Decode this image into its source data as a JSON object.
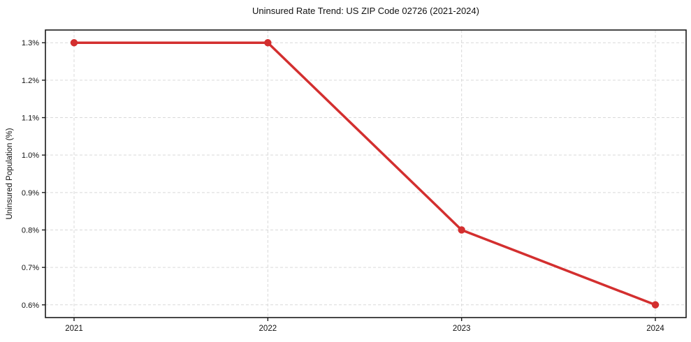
{
  "chart_data": {
    "type": "line",
    "title": "Uninsured Rate Trend: US ZIP Code 02726 (2021-2024)",
    "xlabel": "",
    "ylabel": "Uninsured Population (%)",
    "categories": [
      "2021",
      "2022",
      "2023",
      "2024"
    ],
    "values": [
      1.3,
      1.3,
      0.8,
      0.6
    ],
    "yticks": [
      0.6,
      0.7,
      0.8,
      0.9,
      1.0,
      1.1,
      1.2,
      1.3
    ],
    "ytick_labels": [
      "0.6%",
      "0.7%",
      "0.8%",
      "0.9%",
      "1.0%",
      "1.1%",
      "1.2%",
      "1.3%"
    ],
    "ylim": [
      0.566,
      1.334
    ],
    "grid": true,
    "grid_style": "dashed",
    "legend": false,
    "marker": "circle",
    "colors": {
      "line": "#d32f2f",
      "grid": "#d9d9d9",
      "axis": "#1a1a1a",
      "text": "#111111",
      "background": "#ffffff"
    }
  }
}
